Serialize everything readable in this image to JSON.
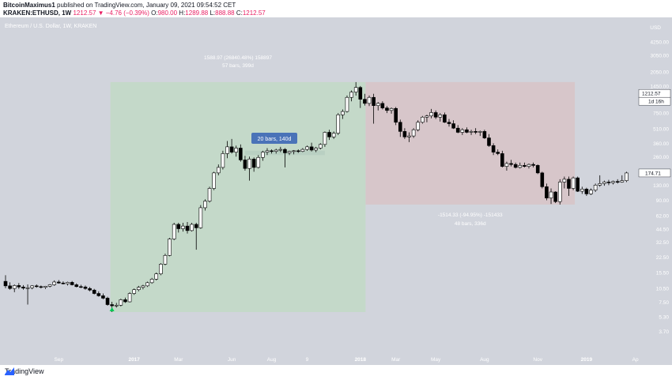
{
  "header": {
    "publisher": "BitcoinMaximus1",
    "published_text": "published on TradingView.com, January 09, 2021 09:54:52 CET",
    "symbol": "KRAKEN:ETHUSD, 1W",
    "change": "1212.57 ▼ −4.76 (−0.39%)",
    "o_label": "O:",
    "o_value": "980.00",
    "h_label": "H:",
    "h_value": "1289.88",
    "l_label": "L:",
    "l_value": "888.88",
    "c_label": "C:",
    "c_value": "1212.57"
  },
  "chart_title": "Ethereum / U.S. Dollar, 1W, KRAKEN",
  "footer": {
    "brand": "TradingView"
  },
  "colors": {
    "up_candle": "#ffffff",
    "down_candle": "#000000",
    "long_zone": "#c4d9c9",
    "short_zone": "#d7c6ca",
    "price_tag": "#ffffff",
    "arrow": "#00c853",
    "info_box": "#4a73b8"
  },
  "chart_data": {
    "type": "candlestick",
    "scale": "log",
    "ylim": [
      3.2,
      6000
    ],
    "y_ticks": [
      "4250.00",
      "3050.00",
      "2050.00",
      "1450.00",
      "1050.00",
      "750.00",
      "510.00",
      "360.00",
      "260.00",
      "180.00",
      "130.00",
      "90.00",
      "62.00",
      "44.50",
      "32.50",
      "22.50",
      "15.50",
      "10.50",
      "7.50",
      "5.30",
      "3.70"
    ],
    "y_unit": "USD",
    "x_ticks": [
      "Sep",
      "2017",
      "Mar",
      "Jun",
      "Aug",
      "9",
      "2018",
      "Mar",
      "May",
      "Aug",
      "Nov",
      "2019",
      "Ap"
    ],
    "price_labels": [
      "1212.57",
      "1d 16h",
      "174.71"
    ],
    "measurements": [
      {
        "name": "rise",
        "line1": "1588.97 (26840.48%) 158897",
        "line2": "57 bars, 399d",
        "low": 5.92,
        "high": 1595
      },
      {
        "name": "fall",
        "line1": "-1514.33 (-94.95%) -151433",
        "line2": "48 bars, 336d",
        "low": 81,
        "high": 1595
      },
      {
        "name": "range",
        "label": "20 bars, 140d"
      }
    ],
    "candles": [
      [
        12.5,
        14.5,
        10.6,
        11.2
      ],
      [
        11.2,
        12.2,
        10.2,
        10.5
      ],
      [
        10.5,
        11.6,
        9.6,
        11.3
      ],
      [
        11.3,
        12.0,
        10.4,
        10.9
      ],
      [
        10.9,
        11.4,
        10.2,
        10.6
      ],
      [
        10.6,
        11.6,
        7.1,
        10.7
      ],
      [
        10.7,
        11.4,
        10.3,
        11.2
      ],
      [
        11.2,
        11.6,
        10.7,
        11.0
      ],
      [
        11.0,
        11.3,
        10.5,
        10.8
      ],
      [
        10.8,
        11.2,
        10.4,
        11.1
      ],
      [
        11.1,
        11.7,
        10.8,
        11.5
      ],
      [
        11.5,
        12.8,
        11.2,
        12.3
      ],
      [
        12.3,
        12.9,
        11.8,
        12.0
      ],
      [
        12.0,
        12.5,
        11.6,
        11.8
      ],
      [
        11.8,
        12.4,
        11.3,
        12.2
      ],
      [
        12.2,
        12.6,
        11.3,
        11.5
      ],
      [
        11.5,
        11.9,
        10.8,
        11.0
      ],
      [
        11.0,
        11.5,
        10.6,
        10.9
      ],
      [
        10.9,
        11.3,
        10.2,
        10.5
      ],
      [
        10.5,
        10.9,
        9.8,
        10.1
      ],
      [
        10.1,
        10.4,
        9.1,
        9.3
      ],
      [
        9.3,
        9.8,
        8.6,
        8.8
      ],
      [
        8.8,
        9.3,
        8.1,
        8.3
      ],
      [
        8.3,
        8.6,
        6.9,
        7.1
      ],
      [
        7.1,
        7.6,
        5.92,
        6.9
      ],
      [
        6.9,
        7.4,
        6.6,
        7.0
      ],
      [
        7.0,
        8.2,
        6.8,
        8.0
      ],
      [
        8.0,
        8.4,
        7.4,
        7.6
      ],
      [
        7.6,
        9.6,
        7.5,
        9.3
      ],
      [
        9.3,
        10.5,
        9.0,
        10.2
      ],
      [
        10.2,
        11.2,
        9.8,
        10.8
      ],
      [
        10.8,
        11.5,
        10.3,
        11.2
      ],
      [
        11.2,
        12.4,
        10.9,
        12.1
      ],
      [
        12.1,
        13.6,
        11.8,
        13.2
      ],
      [
        13.2,
        15.5,
        12.8,
        15.0
      ],
      [
        15.0,
        19.5,
        14.5,
        19.0
      ],
      [
        19.0,
        24.5,
        18.5,
        23.5
      ],
      [
        23.5,
        36.0,
        23.0,
        35.0
      ],
      [
        35.0,
        52.0,
        34.0,
        50.0
      ],
      [
        50.0,
        52.0,
        41.0,
        45.0
      ],
      [
        45.0,
        52.0,
        42.0,
        48.0
      ],
      [
        48.0,
        53.0,
        40.0,
        43.0
      ],
      [
        43.0,
        52.0,
        42.0,
        50.0
      ],
      [
        50.0,
        52.0,
        27.0,
        46.0
      ],
      [
        46.0,
        80.0,
        45.0,
        75.0
      ],
      [
        75.0,
        92.0,
        70.0,
        88.0
      ],
      [
        88.0,
        125.0,
        85.0,
        120.0
      ],
      [
        120.0,
        180.0,
        115.0,
        175.0
      ],
      [
        175.0,
        215.0,
        165.0,
        200.0
      ],
      [
        200.0,
        300.0,
        190.0,
        280.0
      ],
      [
        280.0,
        380.0,
        250.0,
        330.0
      ],
      [
        330.0,
        400.0,
        280.0,
        290.0
      ],
      [
        290.0,
        340.0,
        260.0,
        320.0
      ],
      [
        320.0,
        350.0,
        230.0,
        240.0
      ],
      [
        240.0,
        265.0,
        185.0,
        195.0
      ],
      [
        195.0,
        260.0,
        145.0,
        245.0
      ],
      [
        245.0,
        255.0,
        180.0,
        200.0
      ],
      [
        200.0,
        270.0,
        195.0,
        255.0
      ],
      [
        255.0,
        300.0,
        235.0,
        290.0
      ],
      [
        290.0,
        320.0,
        270.0,
        300.0
      ],
      [
        300.0,
        310.0,
        280.0,
        295.0
      ],
      [
        295.0,
        315.0,
        280.0,
        305.0
      ],
      [
        305.0,
        330.0,
        290.0,
        310.0
      ],
      [
        310.0,
        320.0,
        200.0,
        285.0
      ],
      [
        285.0,
        300.0,
        270.0,
        295.0
      ],
      [
        295.0,
        305.0,
        275.0,
        300.0
      ],
      [
        300.0,
        310.0,
        285.0,
        295.0
      ],
      [
        295.0,
        320.0,
        290.0,
        310.0
      ],
      [
        310.0,
        340.0,
        300.0,
        330.0
      ],
      [
        330.0,
        365.0,
        295.0,
        305.0
      ],
      [
        305.0,
        330.0,
        290.0,
        320.0
      ],
      [
        320.0,
        360.0,
        310.0,
        350.0
      ],
      [
        350.0,
        480.0,
        330.0,
        470.0
      ],
      [
        470.0,
        500.0,
        390.0,
        420.0
      ],
      [
        420.0,
        480.0,
        400.0,
        460.0
      ],
      [
        460.0,
        750.0,
        440.0,
        720.0
      ],
      [
        720.0,
        820.0,
        650.0,
        780.0
      ],
      [
        780.0,
        1150.0,
        760.0,
        1100.0
      ],
      [
        1100.0,
        1300.0,
        1000.0,
        1250.0
      ],
      [
        1250.0,
        1595.0,
        1150.0,
        1400.0
      ],
      [
        1400.0,
        1450.0,
        850.0,
        1050.0
      ],
      [
        1050.0,
        1200.0,
        900.0,
        950.0
      ],
      [
        950.0,
        1150.0,
        890.0,
        1100.0
      ],
      [
        1100.0,
        1200.0,
        580.0,
        900.0
      ],
      [
        900.0,
        980.0,
        800.0,
        950.0
      ],
      [
        950.0,
        1000.0,
        820.0,
        850.0
      ],
      [
        850.0,
        890.0,
        750.0,
        800.0
      ],
      [
        800.0,
        860.0,
        740.0,
        840.0
      ],
      [
        840.0,
        870.0,
        560.0,
        600.0
      ],
      [
        600.0,
        640.0,
        420.0,
        480.0
      ],
      [
        480.0,
        520.0,
        400.0,
        420.0
      ],
      [
        420.0,
        470.0,
        370.0,
        430.0
      ],
      [
        430.0,
        520.0,
        410.0,
        500.0
      ],
      [
        500.0,
        630.0,
        480.0,
        600.0
      ],
      [
        600.0,
        700.0,
        580.0,
        680.0
      ],
      [
        680.0,
        720.0,
        600.0,
        700.0
      ],
      [
        700.0,
        830.0,
        660.0,
        760.0
      ],
      [
        760.0,
        800.0,
        650.0,
        680.0
      ],
      [
        680.0,
        750.0,
        610.0,
        720.0
      ],
      [
        720.0,
        760.0,
        590.0,
        600.0
      ],
      [
        600.0,
        650.0,
        540.0,
        580.0
      ],
      [
        580.0,
        630.0,
        510.0,
        520.0
      ],
      [
        520.0,
        560.0,
        460.0,
        470.0
      ],
      [
        470.0,
        520.0,
        440.0,
        500.0
      ],
      [
        500.0,
        530.0,
        460.0,
        470.0
      ],
      [
        470.0,
        500.0,
        440.0,
        480.0
      ],
      [
        480.0,
        520.0,
        450.0,
        470.0
      ],
      [
        470.0,
        490.0,
        430.0,
        480.0
      ],
      [
        480.0,
        500.0,
        400.0,
        410.0
      ],
      [
        410.0,
        450.0,
        330.0,
        340.0
      ],
      [
        340.0,
        360.0,
        270.0,
        290.0
      ],
      [
        290.0,
        310.0,
        270.0,
        280.0
      ],
      [
        280.0,
        300.0,
        200.0,
        205.0
      ],
      [
        205.0,
        230.0,
        185.0,
        220.0
      ],
      [
        220.0,
        240.0,
        205.0,
        215.0
      ],
      [
        215.0,
        225.0,
        195.0,
        200.0
      ],
      [
        200.0,
        225.0,
        195.0,
        210.0
      ],
      [
        210.0,
        225.0,
        200.0,
        205.0
      ],
      [
        205.0,
        220.0,
        195.0,
        215.0
      ],
      [
        215.0,
        225.0,
        200.0,
        210.0
      ],
      [
        210.0,
        215.0,
        170.0,
        175.0
      ],
      [
        175.0,
        180.0,
        120.0,
        125.0
      ],
      [
        125.0,
        135.0,
        90.0,
        95.0
      ],
      [
        95.0,
        120.0,
        82.0,
        110.0
      ],
      [
        110.0,
        112.0,
        84.0,
        87.0
      ],
      [
        87.0,
        150.0,
        81.0,
        140.0
      ],
      [
        140.0,
        160.0,
        120.0,
        150.0
      ],
      [
        150.0,
        160.0,
        100.0,
        120.0
      ],
      [
        120.0,
        160.0,
        115.0,
        155.0
      ],
      [
        155.0,
        160.0,
        110.0,
        112.0
      ],
      [
        112.0,
        125.0,
        105.0,
        118.0
      ],
      [
        118.0,
        122.0,
        100.0,
        105.0
      ],
      [
        105.0,
        120.0,
        102.0,
        115.0
      ],
      [
        115.0,
        135.0,
        110.0,
        130.0
      ],
      [
        130.0,
        165.0,
        125.0,
        135.0
      ],
      [
        135.0,
        145.0,
        128.0,
        140.0
      ],
      [
        140.0,
        148.0,
        130.0,
        138.0
      ],
      [
        138.0,
        145.0,
        132.0,
        142.0
      ],
      [
        142.0,
        150.0,
        135.0,
        140.0
      ],
      [
        140.0,
        165.0,
        138.0,
        145.0
      ],
      [
        145.0,
        180.0,
        140.0,
        174.71
      ]
    ]
  }
}
